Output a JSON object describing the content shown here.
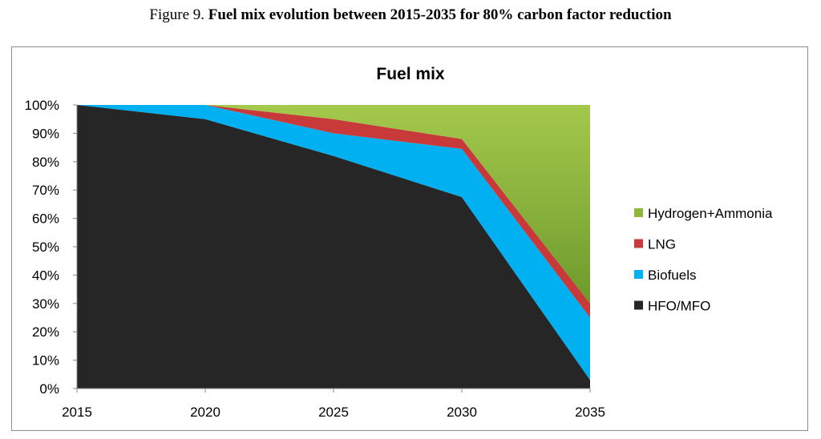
{
  "figure": {
    "number_text": "Figure 9.",
    "title_text": "Fuel mix evolution between 2015-2035 for 80% carbon factor reduction"
  },
  "chart_data": {
    "type": "area",
    "stacked": true,
    "title": "Fuel mix",
    "xlabel": "",
    "ylabel": "",
    "categories": [
      "2015",
      "2020",
      "2025",
      "2030",
      "2035"
    ],
    "y_ticks": [
      "0%",
      "10%",
      "20%",
      "30%",
      "40%",
      "50%",
      "60%",
      "70%",
      "80%",
      "90%",
      "100%"
    ],
    "ylim": [
      0,
      100
    ],
    "grid": false,
    "legend_position": "right",
    "series": [
      {
        "name": "HFO/MFO",
        "color": "#262626",
        "values": [
          100,
          95,
          82,
          67.5,
          3
        ]
      },
      {
        "name": "Biofuels",
        "color": "#00b0f0",
        "values": [
          0,
          5,
          8,
          17,
          22
        ]
      },
      {
        "name": "LNG",
        "color": "#c83a3a",
        "values": [
          0,
          0,
          5,
          3.5,
          5
        ]
      },
      {
        "name": "Hydrogen+Ammonia",
        "color": "#8db83b",
        "values": [
          0,
          0,
          5,
          12,
          70
        ]
      }
    ]
  }
}
